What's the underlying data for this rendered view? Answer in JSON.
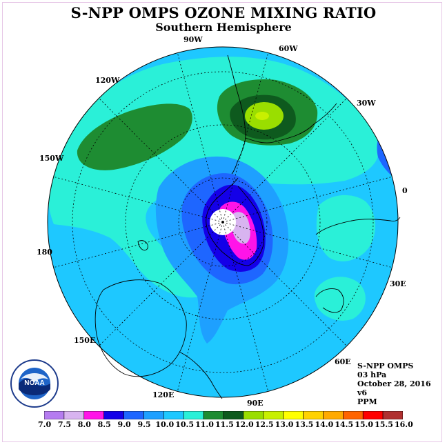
{
  "title": "S-NPP OMPS OZONE MIXING RATIO",
  "subtitle": "Southern Hemisphere",
  "longitude_labels": {
    "w90": "90W",
    "w60": "60W",
    "w120": "120W",
    "w30": "30W",
    "w150": "150W",
    "e0": "0",
    "l180": "180",
    "e30": "30E",
    "e150": "150E",
    "e60": "60E",
    "e120": "120E",
    "e90": "90E"
  },
  "info": {
    "instrument": "S-NPP OMPS",
    "level": "03 hPa",
    "date": "October 28, 2016",
    "version": "v6",
    "units": "PPM"
  },
  "logo_text": "NOAA",
  "colorbar": {
    "ticks": [
      "7.0",
      "7.5",
      "8.0",
      "8.5",
      "9.0",
      "9.5",
      "10.0",
      "10.5",
      "11.0",
      "11.5",
      "12.0",
      "12.5",
      "13.0",
      "13.5",
      "14.0",
      "14.5",
      "15.0",
      "15.5",
      "16.0"
    ],
    "colors": [
      "#b57cf0",
      "#d8b4f0",
      "#ff14e8",
      "#1400e8",
      "#1e66ff",
      "#1ea0ff",
      "#1ec8ff",
      "#2af0d8",
      "#1e8c32",
      "#0e5a1e",
      "#9ade00",
      "#c8f000",
      "#ffff00",
      "#ffd200",
      "#ffaa00",
      "#ff6400",
      "#ff0000",
      "#b03030"
    ]
  },
  "colors": {
    "background_ocean": "#1ec8ff",
    "hole_center": "#ffffff"
  }
}
